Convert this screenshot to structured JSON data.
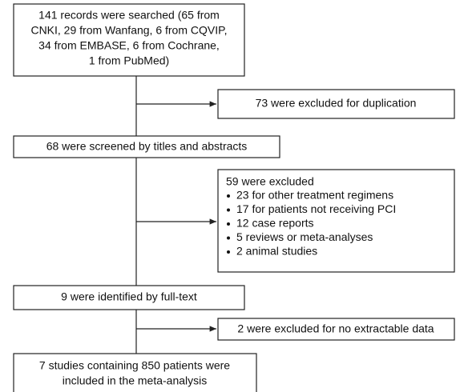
{
  "nodes": [
    {
      "lines": [
        "141 records were searched (65 from",
        "CNKI, 29 from Wanfang, 6 from CQVIP,",
        "34 from EMBASE, 6 from Cochrane,",
        "1 from PubMed)"
      ]
    },
    {
      "lines": [
        "73 were excluded for duplication"
      ]
    },
    {
      "lines": [
        "68 were screened by titles and abstracts"
      ]
    },
    {
      "title": "59 were excluded",
      "items": [
        "23 for other treatment regimens",
        "17 for patients not receiving PCI",
        "12 case reports",
        "5 reviews or meta-analyses",
        "2 animal studies"
      ]
    },
    {
      "lines": [
        "9 were identified by full-text"
      ]
    },
    {
      "lines": [
        "2 were excluded for no extractable data"
      ]
    },
    {
      "lines": [
        "7 studies containing 850 patients were",
        "included in the meta-analysis"
      ]
    }
  ]
}
